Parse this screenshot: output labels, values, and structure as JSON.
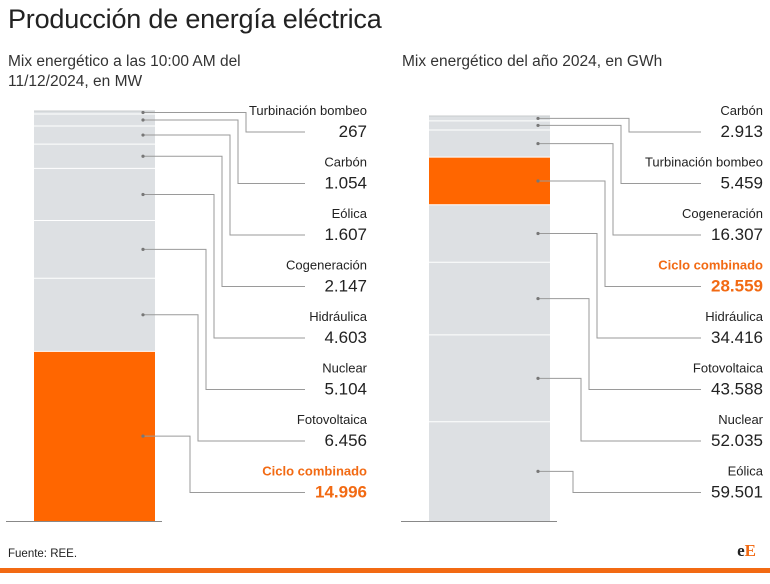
{
  "title": "Producción de energía eléctrica",
  "colors": {
    "bar": "#dde0e3",
    "highlight": "#ff6600",
    "highlight_text": "#f26a13",
    "leader": "#9a9a9a",
    "label": "#222222"
  },
  "chart_data": [
    {
      "type": "bar",
      "stacked": true,
      "subtitle": "Mix energético a las 10:00 AM del 11/12/2024, en MW",
      "highlight": "Ciclo combinado",
      "segments": [
        {
          "name": "Turbinación bombeo",
          "value": 267,
          "label": "267"
        },
        {
          "name": "Carbón",
          "value": 1054,
          "label": "1.054"
        },
        {
          "name": "Eólica",
          "value": 1607,
          "label": "1.607"
        },
        {
          "name": "Cogeneración",
          "value": 2147,
          "label": "2.147"
        },
        {
          "name": "Hidráulica",
          "value": 4603,
          "label": "4.603"
        },
        {
          "name": "Nuclear",
          "value": 5104,
          "label": "5.104"
        },
        {
          "name": "Fotovoltaica",
          "value": 6456,
          "label": "6.456"
        },
        {
          "name": "Ciclo combinado",
          "value": 14996,
          "label": "14.996"
        }
      ]
    },
    {
      "type": "bar",
      "stacked": true,
      "subtitle": "Mix energético del año 2024, en GWh",
      "highlight": "Ciclo combinado",
      "segments": [
        {
          "name": "Carbón",
          "value": 2913,
          "label": "2.913"
        },
        {
          "name": "Turbinación bombeo",
          "value": 5459,
          "label": "5.459"
        },
        {
          "name": "Cogeneración",
          "value": 16307,
          "label": "16.307"
        },
        {
          "name": "Ciclo combinado",
          "value": 28559,
          "label": "28.559"
        },
        {
          "name": "Hidráulica",
          "value": 34416,
          "label": "34.416"
        },
        {
          "name": "Fotovoltaica",
          "value": 43588,
          "label": "43.588"
        },
        {
          "name": "Nuclear",
          "value": 52035,
          "label": "52.035"
        },
        {
          "name": "Eólica",
          "value": 59501,
          "label": "59.501"
        }
      ]
    }
  ],
  "source": "Fuente: REE.",
  "logo": {
    "part1": "e",
    "part2": "E"
  }
}
